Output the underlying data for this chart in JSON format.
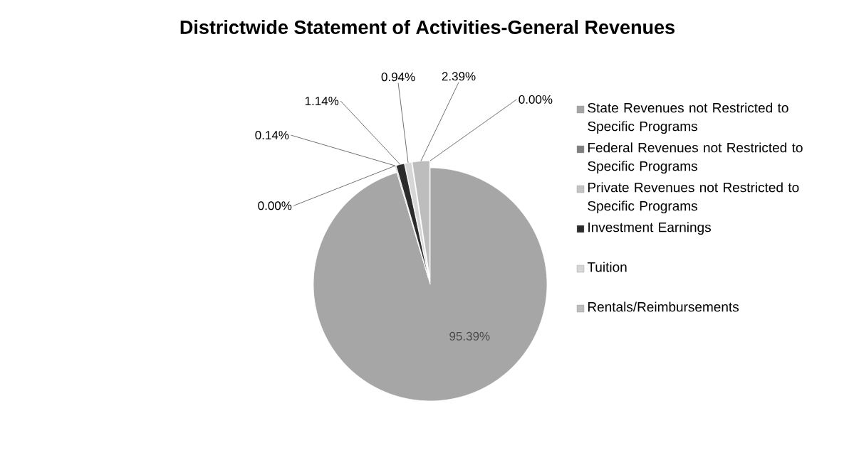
{
  "chart_data": {
    "type": "pie",
    "title": "Districtwide Statement of Activities-General Revenues",
    "categories": [
      "State Revenues not Restricted to Specific Programs",
      "Federal Revenues not Restricted to Specific Programs",
      "Private Revenues not Restricted to Specific Programs",
      "Investment Earnings",
      "Tuition",
      "Rentals/Reimbursements",
      null
    ],
    "values": [
      95.39,
      0.0,
      0.14,
      1.14,
      0.94,
      2.39,
      0.0
    ],
    "value_labels": [
      "95.39%",
      "0.00%",
      "0.14%",
      "1.14%",
      "0.94%",
      "2.39%",
      "0.00%"
    ],
    "colors": [
      "#a6a6a6",
      "#7f7f7f",
      "#c4c4c4",
      "#2b2b2b",
      "#d6d6d6",
      "#bdbdbd",
      "#e2e2e2"
    ],
    "legend": "right"
  }
}
